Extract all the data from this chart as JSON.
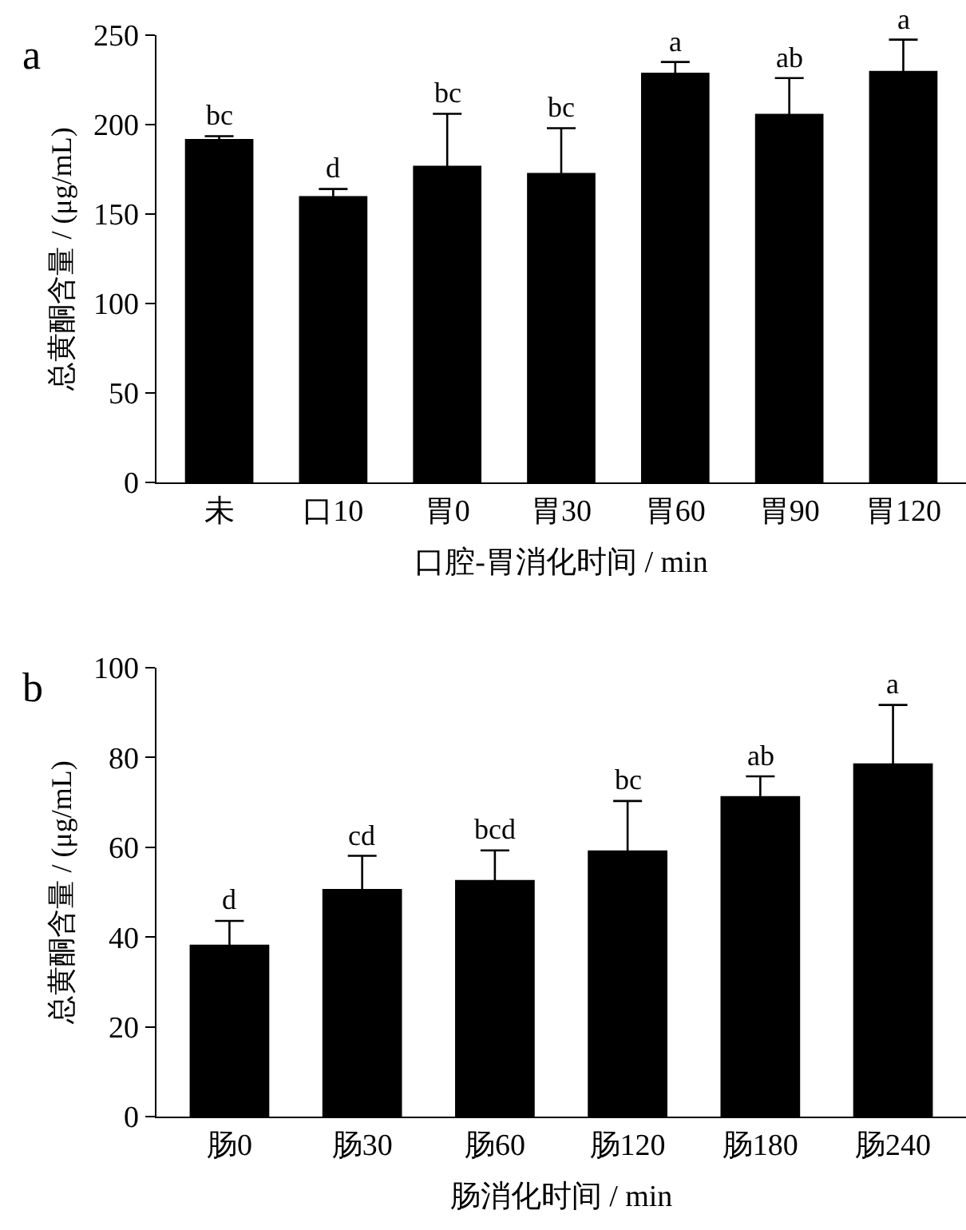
{
  "chart_data": [
    {
      "type": "bar",
      "title": "a",
      "xlabel": "口腔-胃消化时间 / min",
      "ylabel": "总黄酮含量 / (μg/mL)",
      "categories": [
        "未",
        "口10",
        "胃0",
        "胃30",
        "胃60",
        "胃90",
        "胃120"
      ],
      "series": [
        {
          "color": "#000000",
          "values": [
            192,
            160,
            177,
            173,
            229,
            206,
            230
          ],
          "errors": [
            1.5,
            4,
            29,
            25,
            6,
            20,
            17.5
          ]
        }
      ],
      "ylim": [
        0,
        250
      ],
      "yticks": [
        0,
        50,
        100,
        150,
        200,
        250
      ],
      "annotations": [
        {
          "text": "bc",
          "x": "未",
          "y": 193.5
        },
        {
          "text": "d",
          "x": "口10",
          "y": 164
        },
        {
          "text": "bc",
          "x": "胃0",
          "y": 206
        },
        {
          "text": "bc",
          "x": "胃30",
          "y": 198
        },
        {
          "text": "a",
          "x": "胃60",
          "y": 235
        },
        {
          "text": "ab",
          "x": "胃90",
          "y": 226
        },
        {
          "text": "a",
          "x": "胃120",
          "y": 247.5
        }
      ]
    },
    {
      "type": "bar",
      "title": "b",
      "xlabel": "肠消化时间 / min",
      "ylabel": "总黄酮含量 / (μg/mL)",
      "categories": [
        "肠0",
        "肠30",
        "肠60",
        "肠120",
        "肠180",
        "肠240"
      ],
      "series": [
        {
          "color": "#000000",
          "values": [
            38.3,
            50.7,
            52.7,
            59.3,
            71.4,
            78.7
          ],
          "errors": [
            5.3,
            7.4,
            6.6,
            11,
            4.4,
            13
          ]
        }
      ],
      "ylim": [
        0,
        100
      ],
      "yticks": [
        0,
        20,
        40,
        60,
        80,
        100
      ],
      "annotations": [
        {
          "text": "d",
          "x": "肠0",
          "y": 43.6
        },
        {
          "text": "cd",
          "x": "肠30",
          "y": 58.1
        },
        {
          "text": "bcd",
          "x": "肠60",
          "y": 59.3
        },
        {
          "text": "bc",
          "x": "肠120",
          "y": 70.3
        },
        {
          "text": "ab",
          "x": "肠180",
          "y": 75.8
        },
        {
          "text": "a",
          "x": "肠240",
          "y": 91.7
        }
      ]
    }
  ]
}
